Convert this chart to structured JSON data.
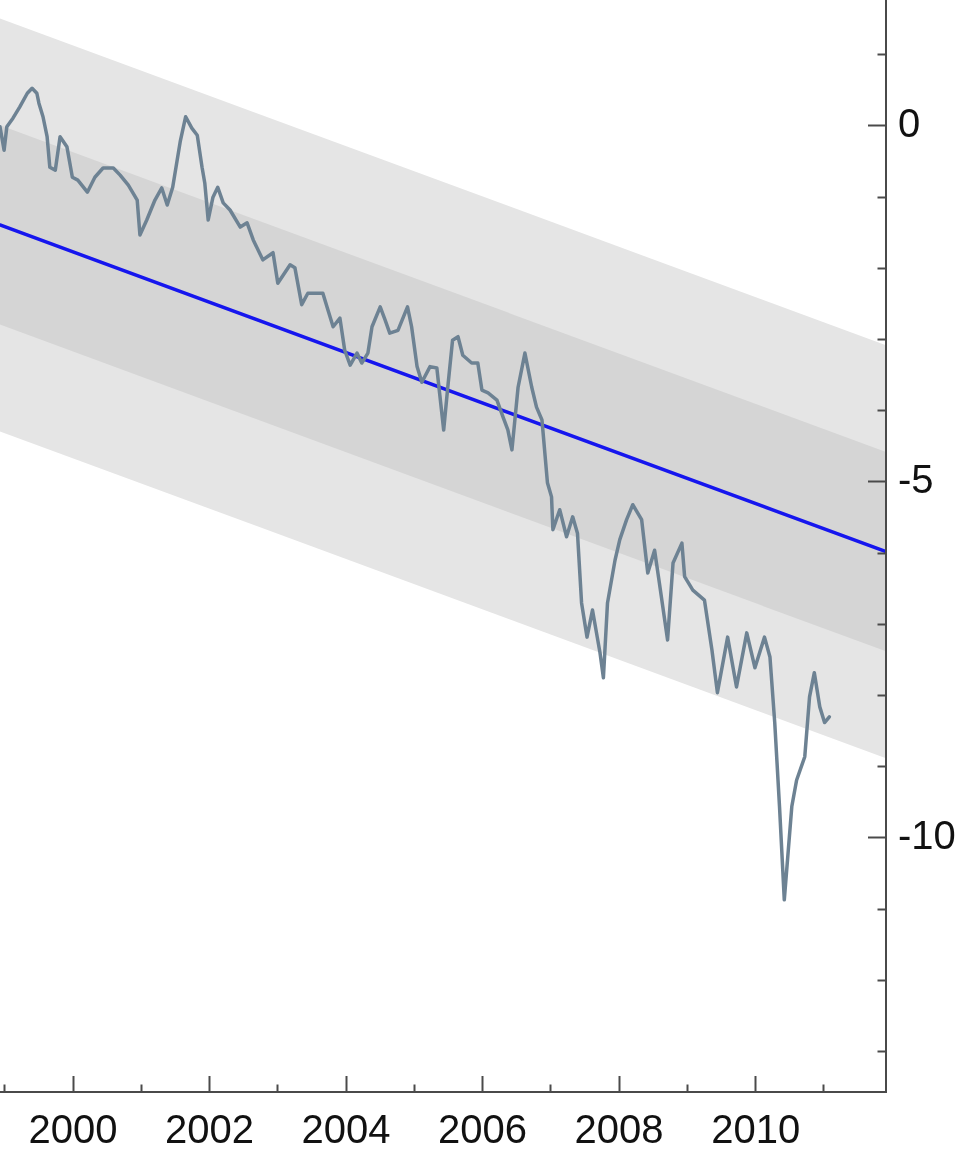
{
  "chart_data": {
    "type": "line",
    "xlim": [
      1998.93,
      2011.91
    ],
    "ylim": [
      -13.57,
      1.77
    ],
    "xticks": [
      {
        "value": 1999,
        "label": null
      },
      2000,
      {
        "value": 2001,
        "label": null
      },
      2002,
      {
        "value": 2003,
        "label": null
      },
      2004,
      {
        "value": 2005,
        "label": null
      },
      2006,
      {
        "value": 2007,
        "label": null
      },
      2008,
      {
        "value": 2009,
        "label": null
      },
      2010,
      {
        "value": 2011,
        "label": null
      }
    ],
    "yticks": [
      {
        "value": 1,
        "label": null
      },
      0,
      {
        "value": -1,
        "label": null
      },
      {
        "value": -2,
        "label": null
      },
      {
        "value": -3,
        "label": null
      },
      {
        "value": -4,
        "label": null
      },
      -5,
      {
        "value": -6,
        "label": null
      },
      {
        "value": -7,
        "label": null
      },
      {
        "value": -8,
        "label": null
      },
      {
        "value": -9,
        "label": null
      },
      -10,
      {
        "value": -11,
        "label": null
      },
      {
        "value": -12,
        "label": null
      },
      {
        "value": -13,
        "label": null
      }
    ],
    "grid": false,
    "legend": false,
    "marker": "none",
    "line_style": "solid",
    "series": [
      {
        "color": "#e5e5e5",
        "x": [
          1998.93,
          2011.91
        ],
        "values": [
          null,
          null
        ],
        "lower": [
          -4.29,
          -8.88
        ],
        "upper": [
          1.51,
          -3.08
        ]
      },
      {
        "color": "#d5d5d5",
        "x": [
          1998.93,
          2011.91
        ],
        "values": [
          null,
          null
        ],
        "lower": [
          -2.79,
          -7.38
        ],
        "upper": [
          0.01,
          -4.58
        ]
      },
      {
        "color": "#1616ee",
        "x": [
          1998.93,
          2011.91
        ],
        "values": [
          -1.39,
          -5.98
        ]
      },
      {
        "color": "#6d8293",
        "x": [
          1998.93,
          1998.99,
          1999.03,
          1999.12,
          1999.22,
          1999.33,
          1999.4,
          1999.47,
          1999.5,
          1999.56,
          1999.62,
          1999.66,
          1999.74,
          1999.81,
          1999.91,
          1999.99,
          2000.07,
          2000.21,
          2000.32,
          2000.44,
          2000.59,
          2000.69,
          2000.81,
          2000.94,
          2000.98,
          2001.08,
          2001.2,
          2001.3,
          2001.38,
          2001.46,
          2001.57,
          2001.65,
          2001.74,
          2001.82,
          2001.89,
          2001.93,
          2001.98,
          2002.05,
          2002.12,
          2002.2,
          2002.3,
          2002.45,
          2002.55,
          2002.64,
          2002.78,
          2002.93,
          2003.0,
          2003.18,
          2003.25,
          2003.35,
          2003.44,
          2003.66,
          2003.72,
          2003.81,
          2003.91,
          2003.98,
          2004.06,
          2004.16,
          2004.23,
          2004.32,
          2004.38,
          2004.5,
          2004.57,
          2004.64,
          2004.76,
          2004.9,
          2004.96,
          2005.04,
          2005.11,
          2005.23,
          2005.33,
          2005.37,
          2005.43,
          2005.49,
          2005.56,
          2005.64,
          2005.71,
          2005.84,
          2005.93,
          2005.99,
          2006.08,
          2006.21,
          2006.3,
          2006.37,
          2006.43,
          2006.52,
          2006.62,
          2006.72,
          2006.79,
          2006.87,
          2006.95,
          2007.01,
          2007.03,
          2007.13,
          2007.23,
          2007.32,
          2007.39,
          2007.45,
          2007.53,
          2007.61,
          2007.72,
          2007.77,
          2007.83,
          2007.94,
          2008.01,
          2008.11,
          2008.2,
          2008.33,
          2008.42,
          2008.52,
          2008.59,
          2008.71,
          2008.79,
          2008.92,
          2008.96,
          2009.08,
          2009.25,
          2009.36,
          2009.44,
          2009.59,
          2009.72,
          2009.87,
          2009.99,
          2010.13,
          2010.21,
          2010.28,
          2010.35,
          2010.42,
          2010.53,
          2010.6,
          2010.72,
          2010.79,
          2010.86,
          2010.94,
          2011.01,
          2011.08
        ],
        "values": [
          -0.01,
          -0.34,
          -0.01,
          0.11,
          0.27,
          0.46,
          0.53,
          0.46,
          0.32,
          0.13,
          -0.15,
          -0.58,
          -0.62,
          -0.15,
          -0.29,
          -0.72,
          -0.76,
          -0.93,
          -0.72,
          -0.59,
          -0.59,
          -0.69,
          -0.83,
          -1.04,
          -1.53,
          -1.32,
          -1.04,
          -0.87,
          -1.11,
          -0.86,
          -0.22,
          0.13,
          -0.03,
          -0.13,
          -0.58,
          -0.8,
          -1.32,
          -1.0,
          -0.86,
          -1.08,
          -1.18,
          -1.42,
          -1.36,
          -1.6,
          -1.88,
          -1.78,
          -2.21,
          -1.95,
          -1.99,
          -2.51,
          -2.35,
          -2.35,
          -2.54,
          -2.82,
          -2.7,
          -3.15,
          -3.36,
          -3.19,
          -3.33,
          -3.19,
          -2.82,
          -2.54,
          -2.72,
          -2.91,
          -2.87,
          -2.54,
          -2.82,
          -3.38,
          -3.6,
          -3.38,
          -3.4,
          -3.75,
          -4.27,
          -3.67,
          -3.01,
          -2.96,
          -3.22,
          -3.33,
          -3.33,
          -3.71,
          -3.75,
          -3.85,
          -4.09,
          -4.27,
          -4.55,
          -3.67,
          -3.19,
          -3.67,
          -3.95,
          -4.13,
          -5.01,
          -5.21,
          -5.67,
          -5.39,
          -5.77,
          -5.49,
          -5.72,
          -6.7,
          -7.18,
          -6.8,
          -7.4,
          -7.75,
          -6.7,
          -6.1,
          -5.81,
          -5.53,
          -5.32,
          -5.53,
          -6.28,
          -5.96,
          -6.42,
          -7.22,
          -6.14,
          -5.86,
          -6.33,
          -6.52,
          -6.66,
          -7.36,
          -7.96,
          -7.18,
          -7.88,
          -7.12,
          -7.61,
          -7.18,
          -7.46,
          -8.38,
          -9.56,
          -10.87,
          -9.56,
          -9.19,
          -8.86,
          -8.02,
          -7.68,
          -8.16,
          -8.38,
          -8.3
        ]
      }
    ]
  }
}
